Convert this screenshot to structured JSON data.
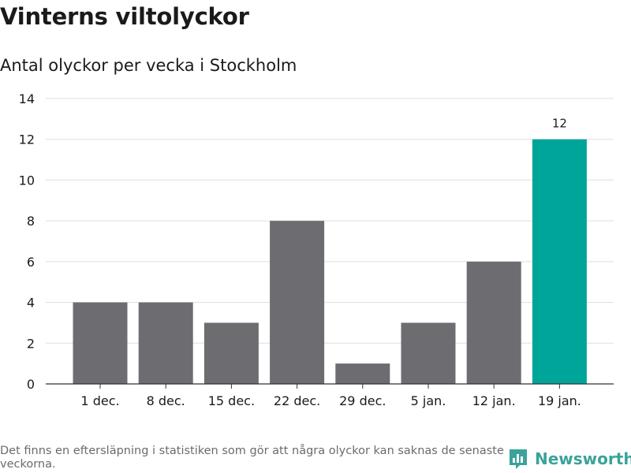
{
  "header": {
    "title": "Vinterns viltolyckor",
    "subtitle": "Antal olyckor per vecka i Stockholm"
  },
  "footer": {
    "note": "Det finns en eftersläpning i statistiken som gör att några olyckor kan saknas de senaste veckorna.",
    "brand": "Newsworthy"
  },
  "colors": {
    "bar_default": "#6d6c70",
    "bar_highlight": "#00a59a",
    "grid": "#dddddd",
    "brand": "#3aa39a"
  },
  "chart_data": {
    "type": "bar",
    "title": "Vinterns viltolyckor",
    "subtitle": "Antal olyckor per vecka i Stockholm",
    "categories": [
      "1 dec.",
      "8 dec.",
      "15 dec.",
      "22 dec.",
      "29 dec.",
      "5 jan.",
      "12 jan.",
      "19 jan."
    ],
    "values": [
      4,
      4,
      3,
      8,
      1,
      3,
      6,
      12
    ],
    "highlight_index": 7,
    "data_labels": [
      {
        "index": 7,
        "text": "12"
      }
    ],
    "xlabel": "",
    "ylabel": "",
    "ylim": [
      0,
      14
    ],
    "yticks": [
      0,
      2,
      4,
      6,
      8,
      10,
      12,
      14
    ],
    "grid": true
  }
}
